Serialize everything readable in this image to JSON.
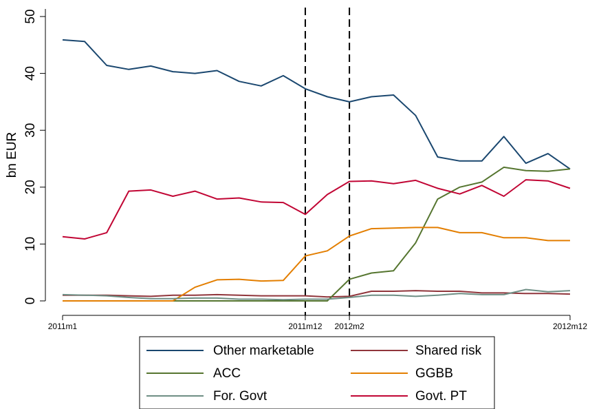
{
  "chart_data": {
    "type": "line",
    "ylabel": "bn EUR",
    "xlabel": "",
    "ylim": [
      0,
      50
    ],
    "yticks": [
      0,
      10,
      20,
      30,
      40,
      50
    ],
    "x_index_range": [
      0,
      23
    ],
    "x_tick_labels": [
      {
        "index": 0,
        "label": "2011m1"
      },
      {
        "index": 11,
        "label": "2011m12"
      },
      {
        "index": 13,
        "label": "2012m2"
      },
      {
        "index": 23,
        "label": "2012m12"
      }
    ],
    "vertical_lines": [
      {
        "index": 11,
        "style": "dashed"
      },
      {
        "index": 13,
        "style": "dashed"
      }
    ],
    "legend_position": "bottom",
    "series": [
      {
        "name": "Other marketable",
        "color": "#1a476f",
        "values": [
          45.9,
          45.6,
          41.4,
          40.7,
          41.3,
          40.3,
          40.0,
          40.5,
          38.6,
          37.8,
          39.6,
          37.3,
          35.9,
          35.0,
          35.9,
          36.2,
          32.6,
          25.3,
          24.6,
          24.6,
          28.9,
          24.2,
          25.9,
          23.2
        ]
      },
      {
        "name": "Shared risk",
        "color": "#90353b",
        "values": [
          1.0,
          1.0,
          1.0,
          0.9,
          0.8,
          1.0,
          1.0,
          1.1,
          1.0,
          0.9,
          0.9,
          0.9,
          0.7,
          0.8,
          1.7,
          1.7,
          1.8,
          1.7,
          1.7,
          1.4,
          1.4,
          1.3,
          1.3,
          1.2
        ]
      },
      {
        "name": "ACC",
        "color": "#55752f",
        "values": [
          0.0,
          0.0,
          0.0,
          0.0,
          0.0,
          0.0,
          0.0,
          0.0,
          0.0,
          0.0,
          0.0,
          0.0,
          0.0,
          3.8,
          4.9,
          5.3,
          10.2,
          17.9,
          20.0,
          20.9,
          23.5,
          22.9,
          22.8,
          23.2
        ]
      },
      {
        "name": "GGBB",
        "color": "#e37e00",
        "values": [
          0.0,
          0.0,
          0.0,
          0.0,
          0.0,
          0.0,
          2.4,
          3.7,
          3.8,
          3.5,
          3.6,
          7.9,
          8.8,
          11.4,
          12.7,
          12.8,
          12.9,
          12.9,
          12.0,
          12.0,
          11.1,
          11.1,
          10.6,
          10.6
        ]
      },
      {
        "name": "For. Govt",
        "color": "#6e8e84",
        "values": [
          1.1,
          1.0,
          0.9,
          0.6,
          0.4,
          0.4,
          0.5,
          0.5,
          0.3,
          0.3,
          0.2,
          0.3,
          0.3,
          0.6,
          1.0,
          1.0,
          0.8,
          1.0,
          1.3,
          1.1,
          1.1,
          2.0,
          1.6,
          1.8
        ]
      },
      {
        "name": "Govt. PT",
        "color": "#c10534",
        "values": [
          11.3,
          10.9,
          12.0,
          19.3,
          19.5,
          18.4,
          19.3,
          17.9,
          18.1,
          17.4,
          17.3,
          15.2,
          18.7,
          21.0,
          21.1,
          20.6,
          21.2,
          19.8,
          18.8,
          20.3,
          18.4,
          21.3,
          21.1,
          19.8
        ]
      }
    ]
  }
}
